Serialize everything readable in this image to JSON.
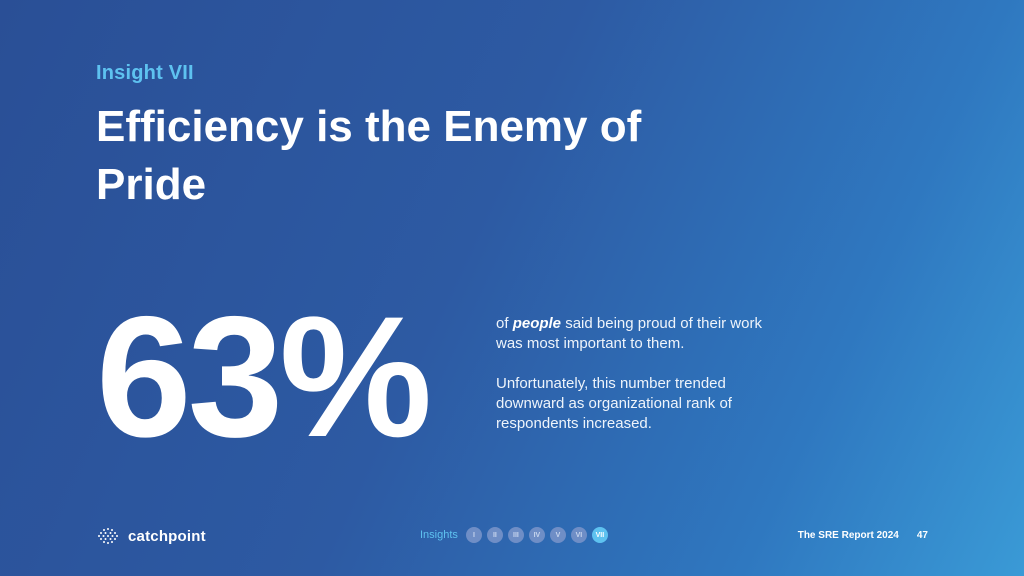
{
  "slide": {
    "eyebrow": "Insight VII",
    "title": "Efficiency is the Enemy of Pride",
    "stat": "63%",
    "desc1": {
      "prefix": "of ",
      "emphasis": "people",
      "suffix": " said being proud of their work was most important to them."
    },
    "desc2": "Unfortunately, this number trended downward as organizational rank of respondents increased."
  },
  "footer": {
    "logo_text": "catchpoint",
    "logo_icon": "globe-dots-icon",
    "nav_label": "Insights",
    "insights": [
      "I",
      "II",
      "III",
      "IV",
      "V",
      "VI",
      "VII"
    ],
    "active_index": 6,
    "report_title": "The SRE Report 2024",
    "page_number": "47"
  },
  "colors": {
    "accent": "#5ec2f0",
    "bg_start": "#2a4f96",
    "bg_end": "#3a9ad6",
    "inactive_dot": "#6f8ec6"
  }
}
